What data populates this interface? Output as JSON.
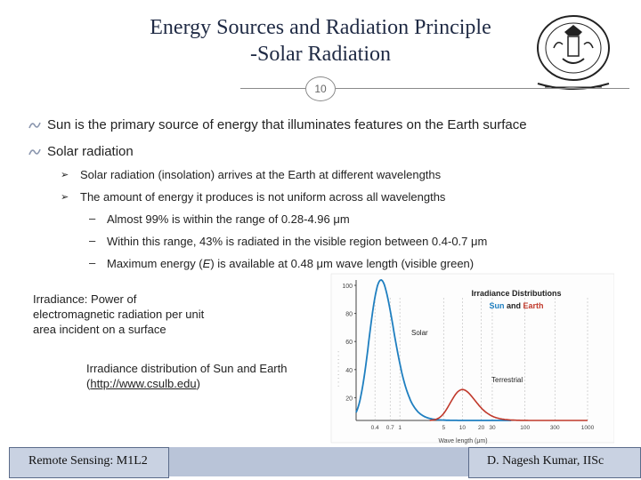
{
  "header": {
    "title_line1": "Energy Sources and Radiation Principle",
    "title_line2": "-Solar Radiation",
    "slide_number": "10"
  },
  "bullets": [
    {
      "text": "Sun is the primary source of energy that illuminates features on the Earth surface"
    },
    {
      "text": "Solar radiation"
    }
  ],
  "sub_bullets": [
    {
      "text": "Solar radiation (insolation) arrives at the Earth at different wavelengths"
    },
    {
      "text": "The amount of energy it produces is not uniform across all wavelengths"
    }
  ],
  "sub_sub_bullets": [
    {
      "text": "Almost 99% is within the range of 0.28-4.96 μm"
    },
    {
      "text": "Within this range, 43% is radiated in the visible region between 0.4-0.7 μm"
    },
    {
      "text_before": "Maximum energy (",
      "text_italic": "E",
      "text_after": ") is available at 0.48 μm wave length (visible green)"
    }
  ],
  "notes": {
    "irradiance_line1": "Irradiance: Power of",
    "irradiance_line2": "electromagnetic radiation per unit",
    "irradiance_line3": "area incident on a surface",
    "caption_line1": "Irradiance distribution of Sun and Earth",
    "caption_open": "(",
    "caption_link": "http://www.csulb.edu",
    "caption_close": ")"
  },
  "chart_data": {
    "type": "line",
    "title": "Irradiance Distributions",
    "subtitle_sun": "Sun",
    "subtitle_and": "and",
    "subtitle_earth": "Earth",
    "xlabel": "Wave length (μm)",
    "x_ticks": [
      "0.4",
      "0.7",
      "1",
      "5",
      "10",
      "20",
      "30",
      "100",
      "300",
      "1000"
    ],
    "y_ticks": [
      "100",
      "80",
      "60",
      "40",
      "20"
    ],
    "series": [
      {
        "name": "Solar",
        "color": "#1f7fc0"
      },
      {
        "name": "Terrestrial",
        "color": "#c0392b"
      }
    ]
  },
  "footer": {
    "left": "Remote Sensing: M1L2",
    "right": "D. Nagesh Kumar, IISc"
  },
  "colors": {
    "title": "#1f2a44",
    "solar_curve": "#1f7fc0",
    "terrestrial_curve": "#c0392b",
    "footer_bg": "#c9d2e2"
  }
}
